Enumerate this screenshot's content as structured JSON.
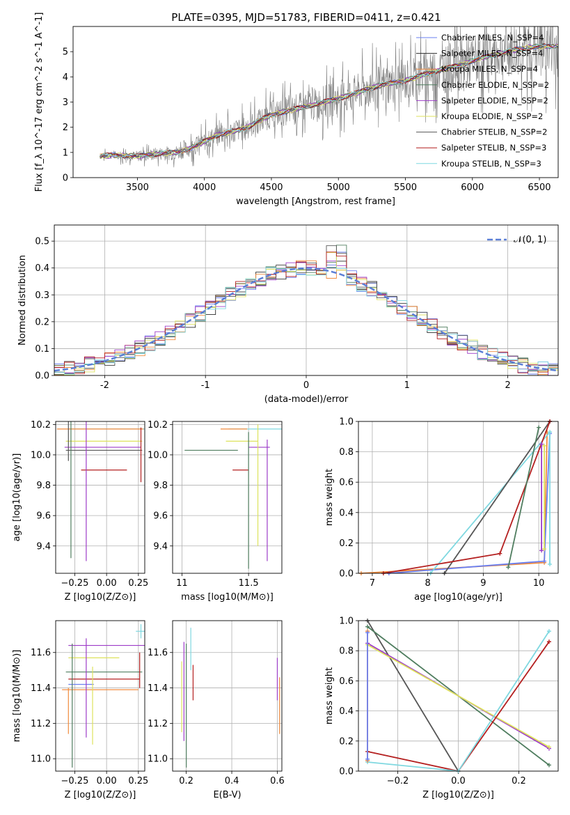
{
  "chart_data": [
    {
      "type": "line",
      "title": "PLATE=0395, MJD=51783, FIBERID=0411, z=0.421",
      "xlabel": "wavelength [Angstrom, rest frame]",
      "ylabel": "Flux [f_λ 10^-17 erg cm^-2 s^-1 A^-1]",
      "xlim": [
        3020,
        6640
      ],
      "ylim": [
        0,
        6
      ],
      "xticks": [
        3500,
        4000,
        4500,
        5000,
        5500,
        6000,
        6500
      ],
      "yticks": [
        0,
        1,
        2,
        3,
        4,
        5
      ],
      "legend_position": "top-right",
      "data_points": [
        [
          3220,
          0.85
        ],
        [
          3350,
          0.9
        ],
        [
          3500,
          0.85
        ],
        [
          3650,
          0.95
        ],
        [
          3800,
          1.0
        ],
        [
          3950,
          1.3
        ],
        [
          4100,
          1.7
        ],
        [
          4300,
          1.95
        ],
        [
          4500,
          2.5
        ],
        [
          4700,
          2.75
        ],
        [
          4900,
          3.0
        ],
        [
          5100,
          3.3
        ],
        [
          5300,
          3.65
        ],
        [
          5500,
          3.85
        ],
        [
          5700,
          4.2
        ],
        [
          5900,
          4.45
        ],
        [
          6100,
          4.8
        ],
        [
          6300,
          5.05
        ],
        [
          6450,
          5.2
        ]
      ],
      "series": [
        {
          "name": "Chabrier MILES, N_SSP=4",
          "color": "#6a7ff0"
        },
        {
          "name": "Salpeter MILES, N_SSP=4",
          "color": "#2a2a2a"
        },
        {
          "name": "Kroupa MILES, N_SSP=4",
          "color": "#f08a3c"
        },
        {
          "name": "Chabrier ELODIE, N_SSP=2",
          "color": "#4f7d5f"
        },
        {
          "name": "Salpeter ELODIE, N_SSP=2",
          "color": "#9d3cc8"
        },
        {
          "name": "Kroupa ELODIE, N_SSP=2",
          "color": "#dde25c"
        },
        {
          "name": "Chabrier STELIB, N_SSP=2",
          "color": "#555555"
        },
        {
          "name": "Salpeter STELIB, N_SSP=3",
          "color": "#b41f1f"
        },
        {
          "name": "Kroupa STELIB, N_SSP=3",
          "color": "#7fd8e0"
        }
      ]
    },
    {
      "type": "line",
      "xlabel": "(data-model)/error",
      "ylabel": "Normed distribution",
      "xlim": [
        -2.5,
        2.5
      ],
      "ylim": [
        0,
        0.56
      ],
      "xticks": [
        -2,
        -1,
        0,
        1,
        2
      ],
      "yticks": [
        0.0,
        0.1,
        0.2,
        0.3,
        0.4,
        0.5
      ],
      "grid": true,
      "legend_position": "top-right",
      "legend": "𝒩(0, 1)",
      "normal_color": "#5b7fd6"
    },
    {
      "type": "scatter",
      "xlabel": "Z [log10(Z/Z⊙)]",
      "ylabel": "age  [log10(age/yr)]",
      "xlim": [
        -0.4,
        0.3
      ],
      "ylim": [
        9.22,
        10.22
      ],
      "xticks": [
        -0.25,
        0.0,
        0.25
      ],
      "xtick_labels": [
        "−0.25",
        "0.00",
        "0.25"
      ],
      "yticks": [
        9.4,
        9.6,
        9.8,
        10.0,
        10.2
      ],
      "grid": true,
      "points": [
        {
          "x": 0.0,
          "y": 10.17,
          "xerr": 0.3,
          "yerr": 0.0,
          "color": "#7fd8e0"
        },
        {
          "x": -0.05,
          "y": 10.17,
          "xerr": 0.34,
          "yerr": 0.0,
          "color": "#f08a3c"
        },
        {
          "x": -0.02,
          "y": 10.09,
          "xerr": 0.3,
          "yerr": 0.0,
          "color": "#dde25c"
        },
        {
          "x": -0.03,
          "y": 10.05,
          "xerr": 0.3,
          "yerr": 0.0,
          "color": "#9d3cc8"
        },
        {
          "x": -0.02,
          "y": 10.03,
          "xerr": 0.3,
          "yerr": 0.0,
          "color": "#555555"
        },
        {
          "x": -0.02,
          "y": 9.9,
          "xerr": 0.18,
          "yerr": 0.0,
          "color": "#b41f1f"
        },
        {
          "x": -0.3,
          "y": 10.1,
          "xerr": 0.0,
          "yerr": 0.14,
          "color": "#555555"
        },
        {
          "x": -0.28,
          "y": 10.04,
          "xerr": 0.0,
          "yerr": 0.72,
          "color": "#4f7d5f"
        },
        {
          "x": -0.16,
          "y": 10.1,
          "xerr": 0.0,
          "yerr": 0.8,
          "color": "#9d3cc8"
        },
        {
          "x": 0.27,
          "y": 10.0,
          "xerr": 0.0,
          "yerr": 0.18,
          "color": "#b41f1f"
        }
      ]
    },
    {
      "type": "scatter",
      "xlabel": "mass [log10(M/M⊙)]",
      "ylim": [
        9.22,
        10.22
      ],
      "xlim": [
        10.93,
        11.75
      ],
      "xticks": [
        11.0,
        11.5
      ],
      "yticks": [
        9.4,
        9.6,
        9.8,
        10.0,
        10.2
      ],
      "grid": true,
      "points": [
        {
          "x": 11.55,
          "y": 10.17,
          "xerr": 0.2,
          "yerr": 0.0,
          "color": "#7fd8e0"
        },
        {
          "x": 11.39,
          "y": 10.17,
          "xerr": 0.1,
          "yerr": 0.0,
          "color": "#f08a3c"
        },
        {
          "x": 11.45,
          "y": 10.09,
          "xerr": 0.12,
          "yerr": 0.0,
          "color": "#dde25c"
        },
        {
          "x": 11.58,
          "y": 10.05,
          "xerr": 0.08,
          "yerr": 0.0,
          "color": "#9d3cc8"
        },
        {
          "x": 11.22,
          "y": 10.03,
          "xerr": 0.2,
          "yerr": 0.0,
          "color": "#4f7d5f"
        },
        {
          "x": 11.44,
          "y": 9.9,
          "xerr": 0.06,
          "yerr": 0.0,
          "color": "#b41f1f"
        },
        {
          "x": 11.5,
          "y": 9.7,
          "xerr": 0.0,
          "yerr": 0.45,
          "color": "#4f7d5f"
        },
        {
          "x": 11.64,
          "y": 9.7,
          "xerr": 0.0,
          "yerr": 0.4,
          "color": "#9d3cc8"
        },
        {
          "x": 11.57,
          "y": 9.8,
          "xerr": 0.0,
          "yerr": 0.4,
          "color": "#dde25c"
        }
      ]
    },
    {
      "type": "line",
      "xlabel": "age  [log10(age/yr)]",
      "ylabel": "mass weight",
      "xlim": [
        6.75,
        10.35
      ],
      "ylim": [
        0,
        1
      ],
      "xticks": [
        7,
        8,
        9,
        10
      ],
      "yticks": [
        0.0,
        0.2,
        0.4,
        0.6,
        0.8,
        1.0
      ],
      "grid": true,
      "series": [
        {
          "color": "#f08a3c",
          "points": [
            [
              6.8,
              0.0
            ],
            [
              10.1,
              0.07
            ],
            [
              10.15,
              0.93
            ]
          ]
        },
        {
          "color": "#6a7ff0",
          "points": [
            [
              7.3,
              0.0
            ],
            [
              10.1,
              0.08
            ],
            [
              10.2,
              0.92
            ]
          ]
        },
        {
          "color": "#7fd8e0",
          "points": [
            [
              8.05,
              0.0
            ],
            [
              10.2,
              0.93
            ],
            [
              10.2,
              0.06
            ]
          ]
        },
        {
          "color": "#555555",
          "points": [
            [
              8.3,
              0.0
            ],
            [
              10.2,
              1.0
            ]
          ]
        },
        {
          "color": "#b41f1f",
          "points": [
            [
              7.2,
              0.0
            ],
            [
              9.3,
              0.13
            ],
            [
              10.2,
              1.0
            ]
          ]
        },
        {
          "color": "#4f7d5f",
          "points": [
            [
              9.45,
              0.04
            ],
            [
              10.0,
              0.96
            ]
          ]
        },
        {
          "color": "#9d3cc8",
          "points": [
            [
              10.05,
              0.15
            ],
            [
              10.05,
              0.85
            ]
          ]
        },
        {
          "color": "#dde25c",
          "points": [
            [
              10.1,
              0.16
            ],
            [
              10.1,
              0.84
            ]
          ]
        }
      ]
    },
    {
      "type": "scatter",
      "xlabel": "Z [log10(Z/Z⊙)]",
      "ylabel": "mass [log10(M/M⊙)]",
      "xlim": [
        -0.4,
        0.3
      ],
      "ylim": [
        10.93,
        11.78
      ],
      "xticks": [
        -0.25,
        0.0,
        0.25
      ],
      "xtick_labels": [
        "−0.25",
        "0.00",
        "0.25"
      ],
      "yticks": [
        11.0,
        11.2,
        11.4,
        11.6
      ],
      "grid": true,
      "points": [
        {
          "x": 0.27,
          "y": 11.72,
          "xerr": 0.04,
          "yerr": 0.04,
          "color": "#7fd8e0"
        },
        {
          "x": 0.0,
          "y": 11.64,
          "xerr": 0.3,
          "yerr": 0.0,
          "color": "#9d3cc8"
        },
        {
          "x": -0.1,
          "y": 11.57,
          "xerr": 0.2,
          "yerr": 0.0,
          "color": "#dde25c"
        },
        {
          "x": -0.02,
          "y": 11.49,
          "xerr": 0.3,
          "yerr": 0.0,
          "color": "#4f7d5f"
        },
        {
          "x": -0.02,
          "y": 11.45,
          "xerr": 0.28,
          "yerr": 0.0,
          "color": "#b41f1f"
        },
        {
          "x": -0.05,
          "y": 11.39,
          "xerr": 0.3,
          "yerr": 0.0,
          "color": "#f08a3c"
        },
        {
          "x": -0.2,
          "y": 11.42,
          "xerr": 0.1,
          "yerr": 0.0,
          "color": "#6a7ff0"
        },
        {
          "x": -0.3,
          "y": 11.27,
          "xerr": 0.0,
          "yerr": 0.13,
          "color": "#f08a3c"
        },
        {
          "x": -0.27,
          "y": 11.3,
          "xerr": 0.0,
          "yerr": 0.35,
          "color": "#4f7d5f"
        },
        {
          "x": -0.16,
          "y": 11.4,
          "xerr": 0.0,
          "yerr": 0.28,
          "color": "#9d3cc8"
        },
        {
          "x": -0.11,
          "y": 11.3,
          "xerr": 0.0,
          "yerr": 0.22,
          "color": "#dde25c"
        },
        {
          "x": 0.26,
          "y": 11.5,
          "xerr": 0.0,
          "yerr": 0.1,
          "color": "#b41f1f"
        }
      ]
    },
    {
      "type": "scatter",
      "xlabel": "E(B-V)",
      "xlim": [
        0.14,
        0.62
      ],
      "ylim": [
        10.93,
        11.78
      ],
      "xticks": [
        0.2,
        0.4,
        0.6
      ],
      "yticks": [
        11.0,
        11.2,
        11.4,
        11.6
      ],
      "grid": true,
      "points": [
        {
          "x": 0.18,
          "y": 11.35,
          "xerr": 0.0,
          "yerr": 0.2,
          "color": "#dde25c"
        },
        {
          "x": 0.19,
          "y": 11.38,
          "xerr": 0.0,
          "yerr": 0.28,
          "color": "#9d3cc8"
        },
        {
          "x": 0.2,
          "y": 11.3,
          "xerr": 0.0,
          "yerr": 0.35,
          "color": "#4f7d5f"
        },
        {
          "x": 0.22,
          "y": 11.62,
          "xerr": 0.0,
          "yerr": 0.12,
          "color": "#7fd8e0"
        },
        {
          "x": 0.23,
          "y": 11.43,
          "xerr": 0.0,
          "yerr": 0.1,
          "color": "#b41f1f"
        },
        {
          "x": 0.6,
          "y": 11.45,
          "xerr": 0.0,
          "yerr": 0.12,
          "color": "#9d3cc8"
        },
        {
          "x": 0.61,
          "y": 11.3,
          "xerr": 0.0,
          "yerr": 0.16,
          "color": "#f08a3c"
        }
      ]
    },
    {
      "type": "line",
      "xlabel": "Z [log10(Z/Z⊙)]",
      "ylabel": "mass weight",
      "xlim": [
        -0.33,
        0.33
      ],
      "ylim": [
        0,
        1
      ],
      "xticks": [
        -0.2,
        0.0,
        0.2
      ],
      "xtick_labels": [
        "−0.2",
        "0.0",
        "0.2"
      ],
      "yticks": [
        0.0,
        0.2,
        0.4,
        0.6,
        0.8,
        1.0
      ],
      "grid": true,
      "series": [
        {
          "color": "#555555",
          "points": [
            [
              -0.3,
              1.0
            ],
            [
              0.0,
              0.0
            ]
          ]
        },
        {
          "color": "#4f7d5f",
          "points": [
            [
              -0.3,
              0.96
            ],
            [
              0.3,
              0.04
            ]
          ]
        },
        {
          "color": "#9d3cc8",
          "points": [
            [
              -0.3,
              0.85
            ],
            [
              0.3,
              0.15
            ]
          ]
        },
        {
          "color": "#dde25c",
          "points": [
            [
              -0.3,
              0.84
            ],
            [
              0.3,
              0.16
            ]
          ]
        },
        {
          "color": "#b41f1f",
          "points": [
            [
              -0.3,
              0.13
            ],
            [
              0.0,
              0.0
            ],
            [
              0.3,
              0.86
            ]
          ]
        },
        {
          "color": "#7fd8e0",
          "points": [
            [
              -0.3,
              0.06
            ],
            [
              0.0,
              0.0
            ],
            [
              0.3,
              0.93
            ]
          ]
        },
        {
          "color": "#f08a3c",
          "points": [
            [
              -0.3,
              0.07
            ],
            [
              -0.3,
              0.93
            ]
          ]
        },
        {
          "color": "#6a7ff0",
          "points": [
            [
              -0.3,
              0.08
            ],
            [
              -0.3,
              0.92
            ]
          ]
        }
      ]
    }
  ]
}
